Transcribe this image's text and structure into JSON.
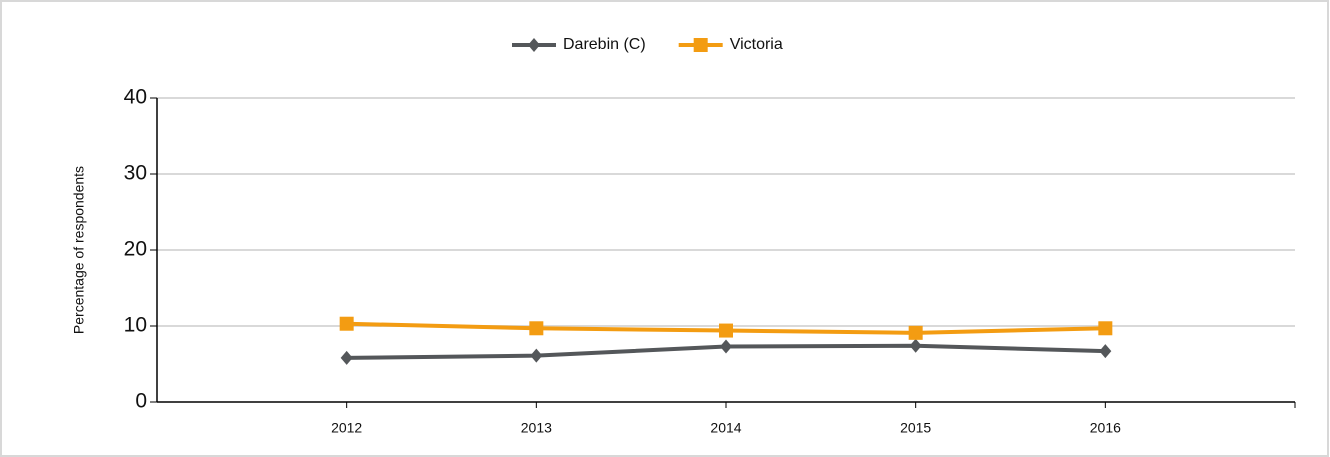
{
  "chart_data": {
    "type": "line",
    "y_label": "Percentage of respondents",
    "categories": [
      "2012",
      "2013",
      "2014",
      "2015",
      "2016"
    ],
    "series": [
      {
        "name": "Darebin (C)",
        "color": "#54575a",
        "marker": "diamond",
        "values": [
          5.8,
          6.1,
          7.3,
          7.4,
          6.7
        ]
      },
      {
        "name": "Victoria",
        "color": "#f39c12",
        "marker": "square",
        "values": [
          10.3,
          9.7,
          9.4,
          9.1,
          9.7
        ]
      }
    ],
    "ylim": [
      0,
      40
    ],
    "yticks": [
      0,
      10,
      20,
      30,
      40
    ],
    "grid": true,
    "legend": "top"
  }
}
